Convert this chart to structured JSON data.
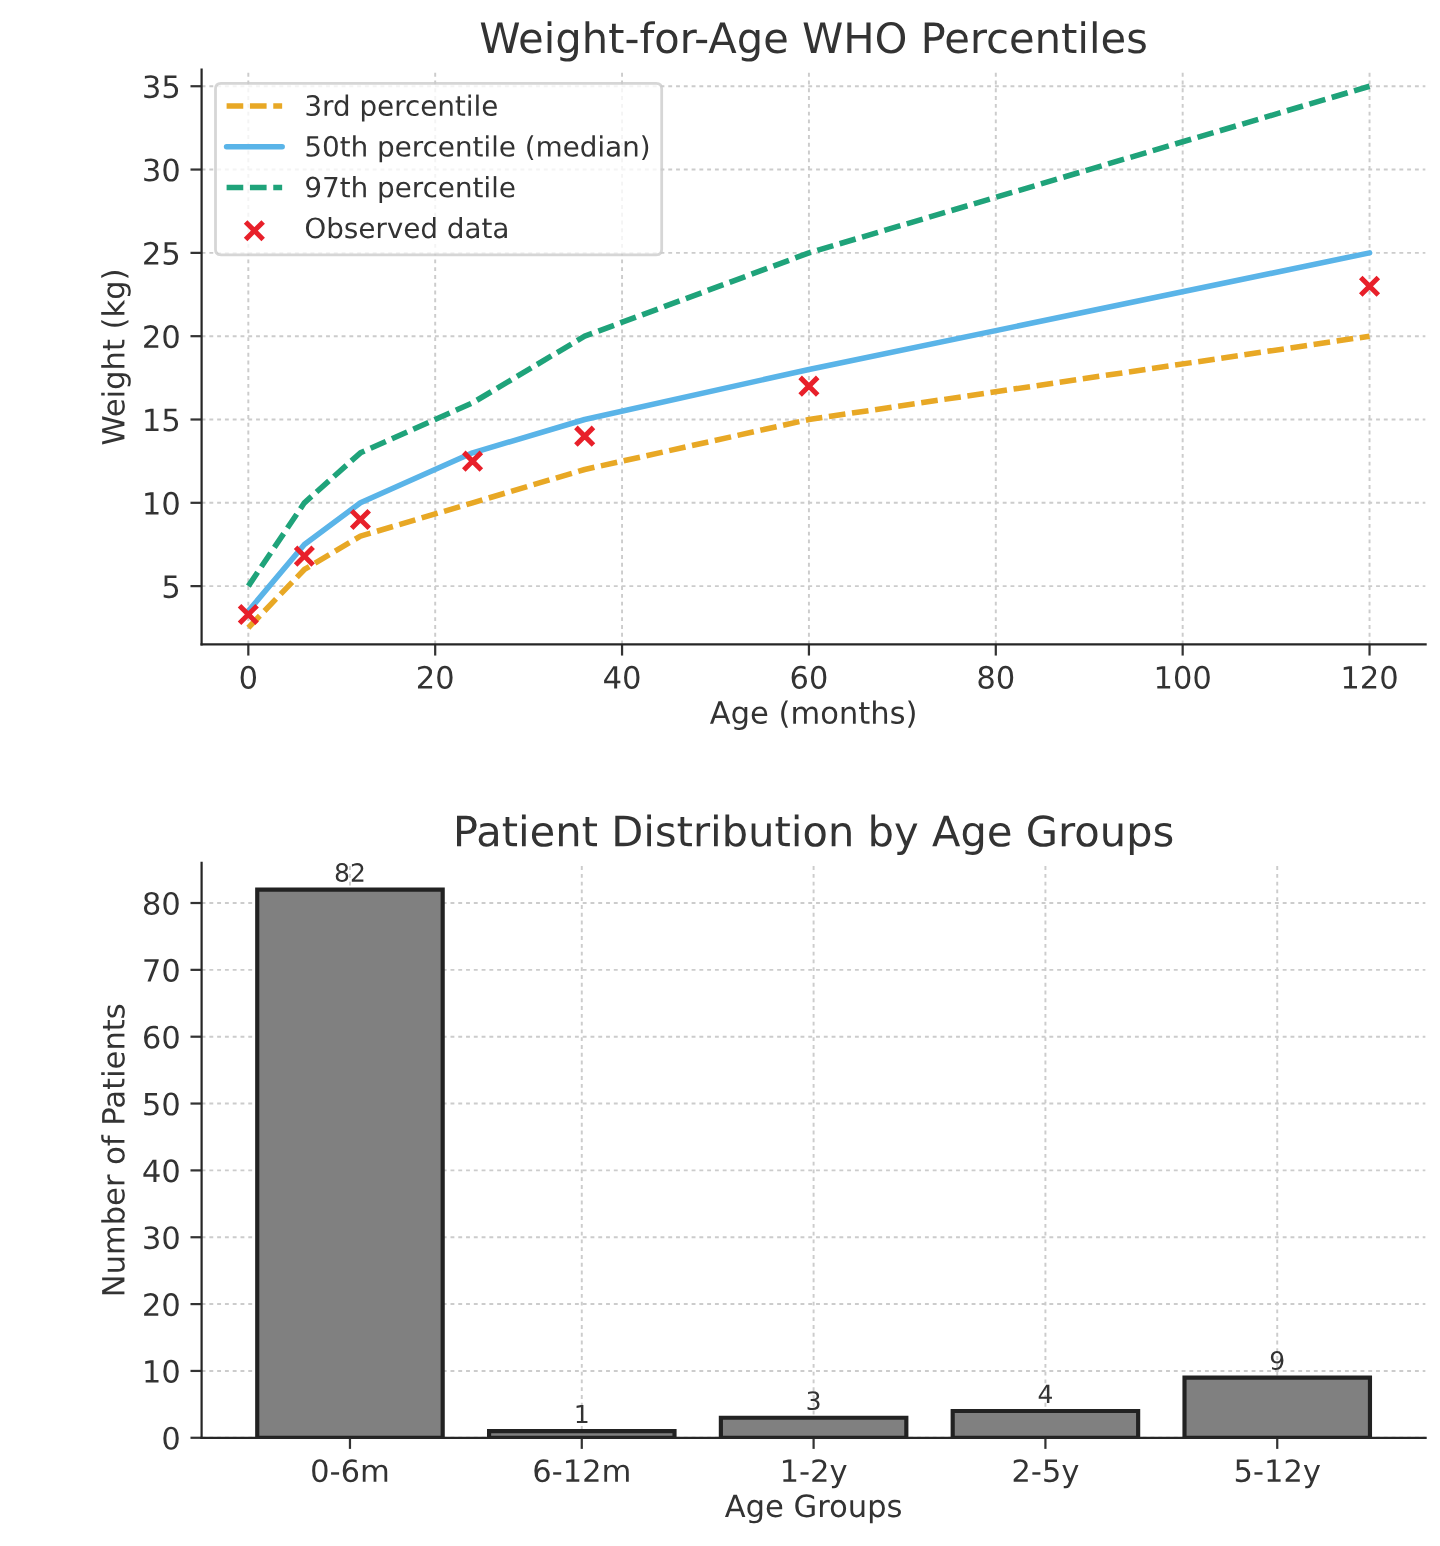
{
  "chart_data": [
    {
      "type": "line",
      "title": "Weight-for-Age WHO Percentiles",
      "xlabel": "Age (months)",
      "ylabel": "Weight (kg)",
      "x": [
        0,
        6,
        12,
        24,
        36,
        60,
        120
      ],
      "series": [
        {
          "name": "3rd percentile",
          "color": "#e8a825",
          "line_style": "dashed",
          "values": [
            2.5,
            6,
            8,
            10,
            12,
            15,
            20
          ]
        },
        {
          "name": "50th percentile (median)",
          "color": "#5ab4e8",
          "line_style": "solid",
          "values": [
            3.5,
            7.5,
            10,
            13,
            15,
            18,
            25
          ]
        },
        {
          "name": "97th percentile",
          "color": "#1fa37a",
          "line_style": "dashed",
          "values": [
            5,
            10,
            13,
            16,
            20,
            25,
            35
          ]
        },
        {
          "name": "Observed data",
          "type": "scatter",
          "marker": "cross",
          "color": "#e8202a",
          "values": [
            3.3,
            6.8,
            9,
            12.5,
            14,
            17,
            23
          ]
        }
      ],
      "xlim": [
        -5,
        126
      ],
      "ylim": [
        1.5,
        36
      ],
      "xticks": [
        0,
        20,
        40,
        60,
        80,
        100,
        120
      ],
      "yticks": [
        5,
        10,
        15,
        20,
        25,
        30,
        35
      ],
      "grid": true,
      "legend": "top left"
    },
    {
      "type": "bar",
      "title": "Patient Distribution by Age Groups",
      "xlabel": "Age Groups",
      "ylabel": "Number of Patients",
      "categories": [
        "0-6m",
        "6-12m",
        "1-2y",
        "2-5y",
        "5-12y"
      ],
      "values": [
        82,
        1,
        3,
        4,
        9
      ],
      "color": "#808080",
      "ylim": [
        0,
        86
      ],
      "yticks": [
        0,
        10,
        20,
        30,
        40,
        50,
        60,
        70,
        80
      ],
      "grid": true,
      "data_labels": true
    }
  ]
}
